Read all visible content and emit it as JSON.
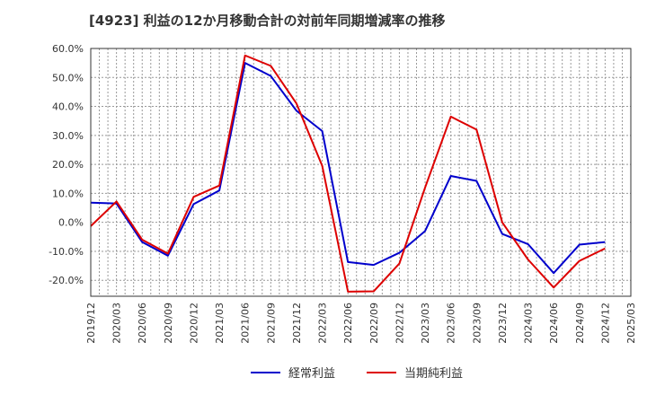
{
  "chart_data": {
    "type": "line",
    "title": "[4923]  利益の12か月移動合計の対前年同期増減率の推移",
    "xlabel": "",
    "ylabel": "",
    "ylim": [
      -25.5,
      60
    ],
    "yticks": [
      60,
      50,
      40,
      30,
      20,
      10,
      0,
      -10,
      -20
    ],
    "ytick_labels": [
      "60.0%",
      "50.0%",
      "40.0%",
      "30.0%",
      "20.0%",
      "10.0%",
      "0.0%",
      "-10.0%",
      "-20.0%"
    ],
    "categories": [
      "2019/12",
      "2020/03",
      "2020/06",
      "2020/09",
      "2020/12",
      "2021/03",
      "2021/06",
      "2021/09",
      "2021/12",
      "2022/03",
      "2022/06",
      "2022/09",
      "2022/12",
      "2023/03",
      "2023/06",
      "2023/09",
      "2023/12",
      "2024/03",
      "2024/06",
      "2024/09",
      "2024/12",
      "2025/03"
    ],
    "grid": true,
    "legend_position": "bottom",
    "series": [
      {
        "name": "経常利益",
        "color": "#0000cc",
        "values": [
          6.8,
          6.5,
          -6.8,
          -11.5,
          6.3,
          11.0,
          55.0,
          50.5,
          38.5,
          31.5,
          -13.7,
          -14.7,
          -10.5,
          -3.0,
          16.0,
          14.3,
          -4.0,
          -7.5,
          -17.5,
          -7.7,
          -6.8,
          null
        ]
      },
      {
        "name": "当期純利益",
        "color": "#dd0000",
        "values": [
          -1.3,
          7.2,
          -6.0,
          -10.8,
          8.8,
          12.7,
          57.6,
          54.0,
          41.0,
          19.5,
          -23.9,
          -23.8,
          -14.2,
          12.0,
          36.5,
          32.0,
          0.0,
          -12.8,
          -22.5,
          -13.3,
          -9.0,
          null
        ]
      }
    ]
  }
}
